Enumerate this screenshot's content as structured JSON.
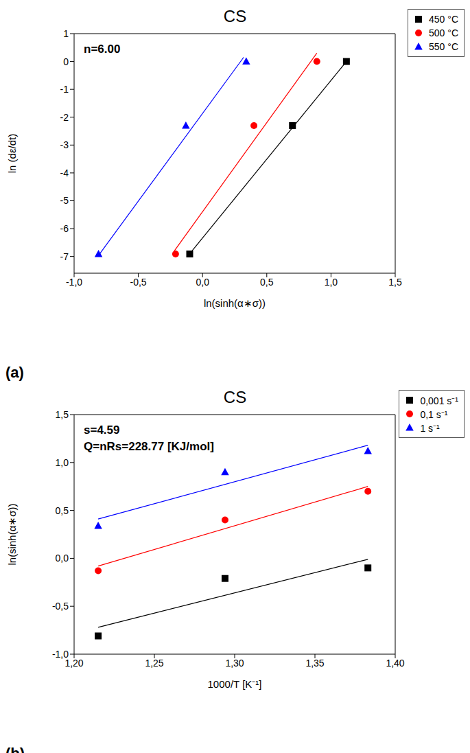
{
  "chart_data": [
    {
      "type": "scatter",
      "title": "CS",
      "panel_label": "(a)",
      "annotations": [
        "n=6.00"
      ],
      "x_label": "ln(sinh(α∗σ))",
      "y_label": "ln (dε/dt)",
      "xlim": [
        -1.0,
        1.5
      ],
      "xticks": [
        {
          "value": -1.0,
          "label": "-1,0"
        },
        {
          "value": -0.5,
          "label": "-0,5"
        },
        {
          "value": 0.0,
          "label": "0,0"
        },
        {
          "value": 0.5,
          "label": "0,5"
        },
        {
          "value": 1.0,
          "label": "1,0"
        },
        {
          "value": 1.5,
          "label": "1,5"
        }
      ],
      "ylim": [
        -7.6,
        1
      ],
      "yticks": [
        -7,
        -6,
        -5,
        -4,
        -3,
        -2,
        -1,
        0,
        1
      ],
      "legend": "top-right",
      "grid": false,
      "series": [
        {
          "name": "450 °C",
          "color": "#000000",
          "marker": "square",
          "x": [
            -0.1,
            0.7,
            1.12
          ],
          "values": [
            -6.91,
            -2.3,
            0.0
          ],
          "fit": {
            "x": [
              -0.1,
              1.12
            ],
            "values": [
              -6.9,
              0.0
            ]
          }
        },
        {
          "name": "500 °C",
          "color": "#ff0000",
          "marker": "circle",
          "x": [
            -0.21,
            0.4,
            0.89
          ],
          "values": [
            -6.91,
            -2.3,
            0.0
          ],
          "fit": {
            "x": [
              -0.22,
              0.89
            ],
            "values": [
              -6.8,
              0.3
            ]
          }
        },
        {
          "name": "550 °C",
          "color": "#0000ff",
          "marker": "triangle",
          "x": [
            -0.81,
            -0.13,
            0.34
          ],
          "values": [
            -6.91,
            -2.3,
            0.0
          ],
          "fit": {
            "x": [
              -0.8,
              0.32
            ],
            "values": [
              -6.9,
              0.15
            ]
          }
        }
      ]
    },
    {
      "type": "scatter",
      "title": "CS",
      "panel_label": "(b)",
      "annotations": [
        "s=4.59",
        "Q=nRs=228.77 [KJ/mol]"
      ],
      "x_label": "1000/T [K⁻¹]",
      "y_label": "ln(sinh(α∗σ))",
      "xlim": [
        1.2,
        1.4
      ],
      "xticks": [
        {
          "value": 1.2,
          "label": "1,20"
        },
        {
          "value": 1.25,
          "label": "1,25"
        },
        {
          "value": 1.3,
          "label": "1,30"
        },
        {
          "value": 1.35,
          "label": "1,35"
        },
        {
          "value": 1.4,
          "label": "1,40"
        }
      ],
      "ylim": [
        -1.0,
        1.5
      ],
      "yticks": [
        {
          "value": -1.0,
          "label": "-1,0"
        },
        {
          "value": -0.5,
          "label": "-0,5"
        },
        {
          "value": 0.0,
          "label": "0,0"
        },
        {
          "value": 0.5,
          "label": "0,5"
        },
        {
          "value": 1.0,
          "label": "1,0"
        },
        {
          "value": 1.5,
          "label": "1,5"
        }
      ],
      "legend": "top-right",
      "grid": false,
      "series": [
        {
          "name": "0,001 s⁻¹",
          "color": "#000000",
          "marker": "square",
          "x": [
            1.215,
            1.294,
            1.383
          ],
          "values": [
            -0.81,
            -0.21,
            -0.1
          ],
          "fit": {
            "x": [
              1.215,
              1.383
            ],
            "values": [
              -0.72,
              -0.01
            ]
          }
        },
        {
          "name": "0,1 s⁻¹",
          "color": "#ff0000",
          "marker": "circle",
          "x": [
            1.215,
            1.294,
            1.383
          ],
          "values": [
            -0.13,
            0.4,
            0.7
          ],
          "fit": {
            "x": [
              1.215,
              1.383
            ],
            "values": [
              -0.08,
              0.75
            ]
          }
        },
        {
          "name": "1 s⁻¹",
          "color": "#0000ff",
          "marker": "triangle",
          "x": [
            1.215,
            1.294,
            1.383
          ],
          "values": [
            0.34,
            0.9,
            1.12
          ],
          "fit": {
            "x": [
              1.215,
              1.383
            ],
            "values": [
              0.41,
              1.18
            ]
          }
        }
      ]
    }
  ]
}
